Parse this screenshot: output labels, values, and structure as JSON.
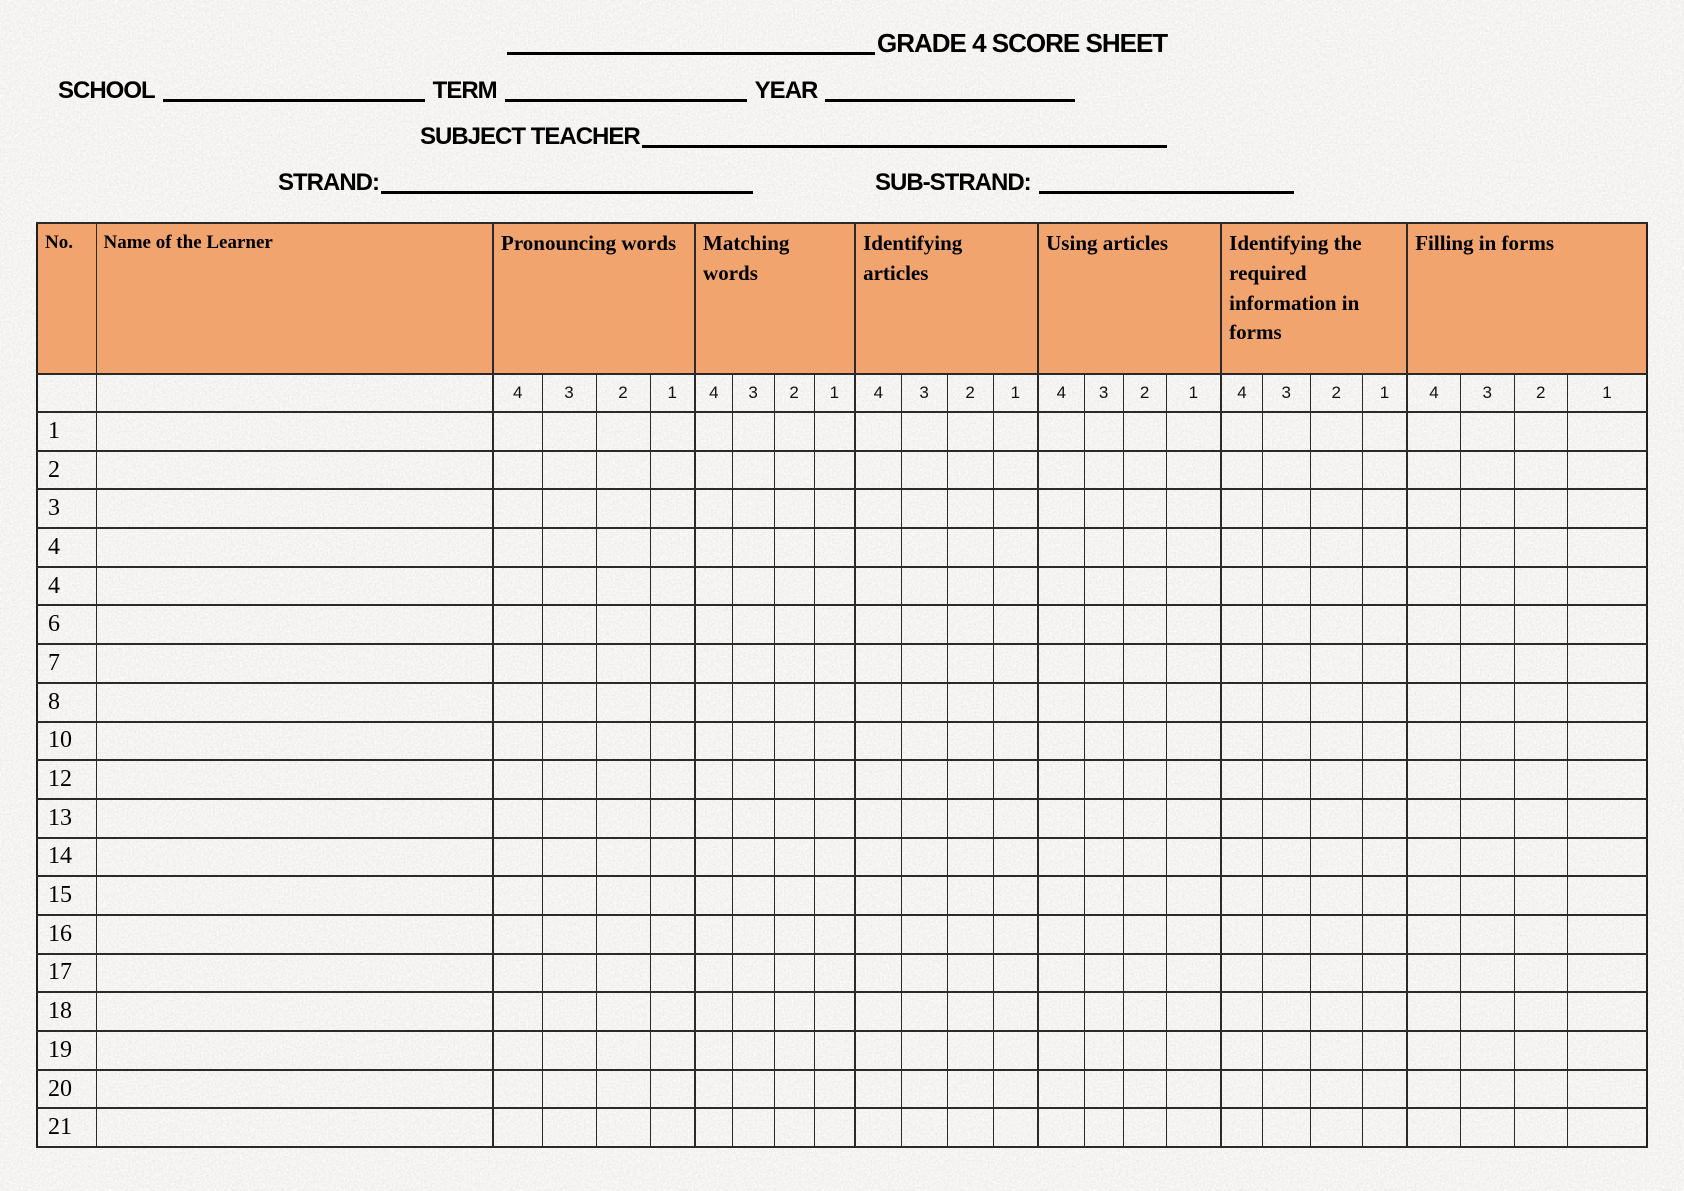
{
  "page": {
    "title": "GRADE 4 SCORE SHEET"
  },
  "form": {
    "school_label": "SCHOOL",
    "term_label": "TERM",
    "year_label": "YEAR",
    "subject_teacher_label": "SUBJECT TEACHER",
    "strand_label": "STRAND:",
    "sub_strand_label": "SUB-STRAND:"
  },
  "colors": {
    "header_fill": "#F2A46E",
    "grid_line": "#2A2A2A",
    "page_background": "#EAE9E6",
    "text": "#000000"
  },
  "table": {
    "no_header": "No.",
    "name_header": "Name of the Learner",
    "groups": [
      {
        "label": "Pronouncing words",
        "sub": [
          "4",
          "3",
          "2",
          "1"
        ]
      },
      {
        "label": "Matching words",
        "sub": [
          "4",
          "3",
          "2",
          "1"
        ]
      },
      {
        "label": "Identifying articles",
        "sub": [
          "4",
          "3",
          "2",
          "1"
        ]
      },
      {
        "label": "Using articles",
        "sub": [
          "4",
          "3",
          "2",
          "1"
        ]
      },
      {
        "label": "Identifying the required information in forms",
        "sub": [
          "4",
          "3",
          "2",
          "1"
        ]
      },
      {
        "label": "Filling in forms",
        "sub": [
          "4",
          "3",
          "2",
          "1"
        ]
      }
    ],
    "row_numbers": [
      "1",
      "2",
      "3",
      "4",
      "4",
      "6",
      "7",
      "8",
      "10",
      "12",
      "13",
      "14",
      "15",
      "16",
      "17",
      "18",
      "19",
      "20",
      "21"
    ]
  }
}
